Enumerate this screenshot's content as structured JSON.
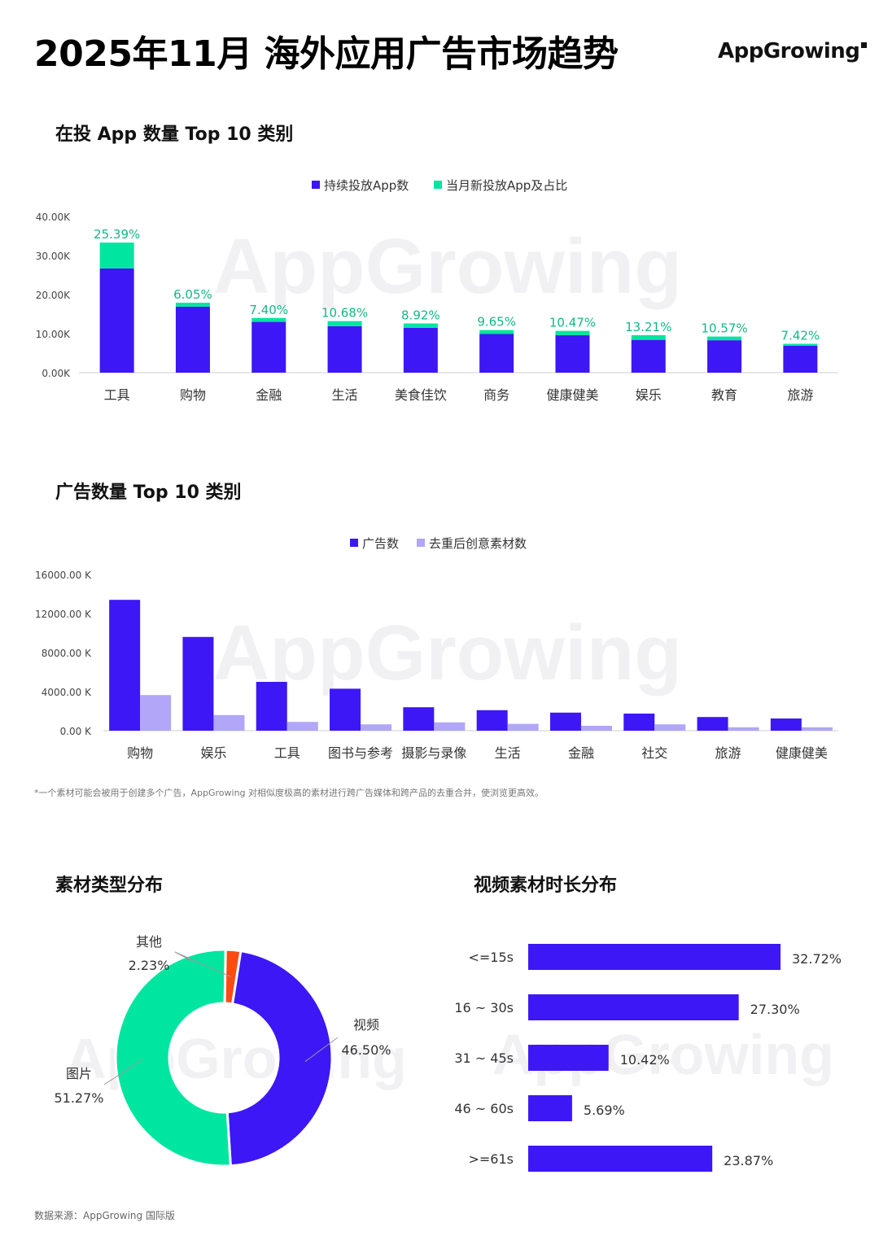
{
  "page": {
    "title": "2025年11月 海外应用广告市场趋势",
    "brand": "AppGrowing",
    "footnote": "*一个素材可能会被用于创建多个广告，AppGrowing 对相似度极高的素材进行跨广告媒体和跨产品的去重合并，使浏览更高效。",
    "source": "数据来源：AppGrowing 国际版",
    "watermark": "AppGrowing"
  },
  "colors": {
    "primary": "#3D17F5",
    "green": "#00E5A0",
    "green_text": "#12B886",
    "lavender": "#B1A6F8",
    "orange": "#FF4A12"
  },
  "chart_data": [
    {
      "id": "apps",
      "type": "bar",
      "stacked": true,
      "title": "在投 App 数量 Top 10 类别",
      "categories": [
        "工具",
        "购物",
        "金融",
        "生活",
        "美食佳饮",
        "商务",
        "健康健美",
        "娱乐",
        "教育",
        "旅游"
      ],
      "series": [
        {
          "name": "持续投放App数",
          "color": "#3D17F5",
          "values": [
            26700,
            16900,
            13000,
            11900,
            11500,
            9900,
            9600,
            8400,
            8300,
            6900
          ]
        },
        {
          "name": "当月新投放App及占比",
          "color": "#00E5A0",
          "values": [
            6600,
            1000,
            1000,
            1300,
            1100,
            1000,
            1100,
            1200,
            950,
            500
          ]
        }
      ],
      "data_labels": [
        "25.39%",
        "6.05%",
        "7.40%",
        "10.68%",
        "8.92%",
        "9.65%",
        "10.47%",
        "13.21%",
        "10.57%",
        "7.42%"
      ],
      "yticks": [
        "0.00K",
        "10.00K",
        "20.00K",
        "30.00K",
        "40.00K"
      ],
      "ylim": [
        0,
        40000
      ],
      "legend": "top-center",
      "grid": false
    },
    {
      "id": "ads",
      "type": "bar",
      "title": "广告数量 Top 10 类别",
      "categories": [
        "购物",
        "娱乐",
        "工具",
        "图书与参考",
        "摄影与录像",
        "生活",
        "金融",
        "社交",
        "旅游",
        "健康健美"
      ],
      "series": [
        {
          "name": "广告数",
          "color": "#3D17F5",
          "values": [
            13400,
            9600,
            5000,
            4300,
            2400,
            2100,
            1850,
            1750,
            1400,
            1250
          ]
        },
        {
          "name": "去重后创意素材数",
          "color": "#B1A6F8",
          "values": [
            3650,
            1600,
            900,
            650,
            850,
            700,
            500,
            650,
            350,
            350
          ]
        }
      ],
      "yticks": [
        "0.00 K",
        "4000.00 K",
        "8000.00 K",
        "12000.00 K",
        "16000.00 K"
      ],
      "ylim": [
        0,
        16000
      ],
      "legend": "top-center",
      "grid": false
    },
    {
      "id": "creative_types",
      "type": "pie",
      "donut": true,
      "title": "素材类型分布",
      "slices": [
        {
          "label": "视频",
          "value": 46.5,
          "text": "46.50%",
          "color": "#3D17F5"
        },
        {
          "label": "图片",
          "value": 51.27,
          "text": "51.27%",
          "color": "#00E5A0"
        },
        {
          "label": "其他",
          "value": 2.23,
          "text": "2.23%",
          "color": "#FF4A12"
        }
      ]
    },
    {
      "id": "video_durations",
      "type": "bar",
      "orientation": "horizontal",
      "title": "视频素材时长分布",
      "categories": [
        "<=15s",
        "16 ~ 30s",
        "31 ~ 45s",
        "46 ~ 60s",
        ">=61s"
      ],
      "values": [
        32.72,
        27.3,
        10.42,
        5.69,
        23.87
      ],
      "labels": [
        "32.72%",
        "27.30%",
        "10.42%",
        "5.69%",
        "23.87%"
      ],
      "color": "#3D17F5"
    }
  ]
}
